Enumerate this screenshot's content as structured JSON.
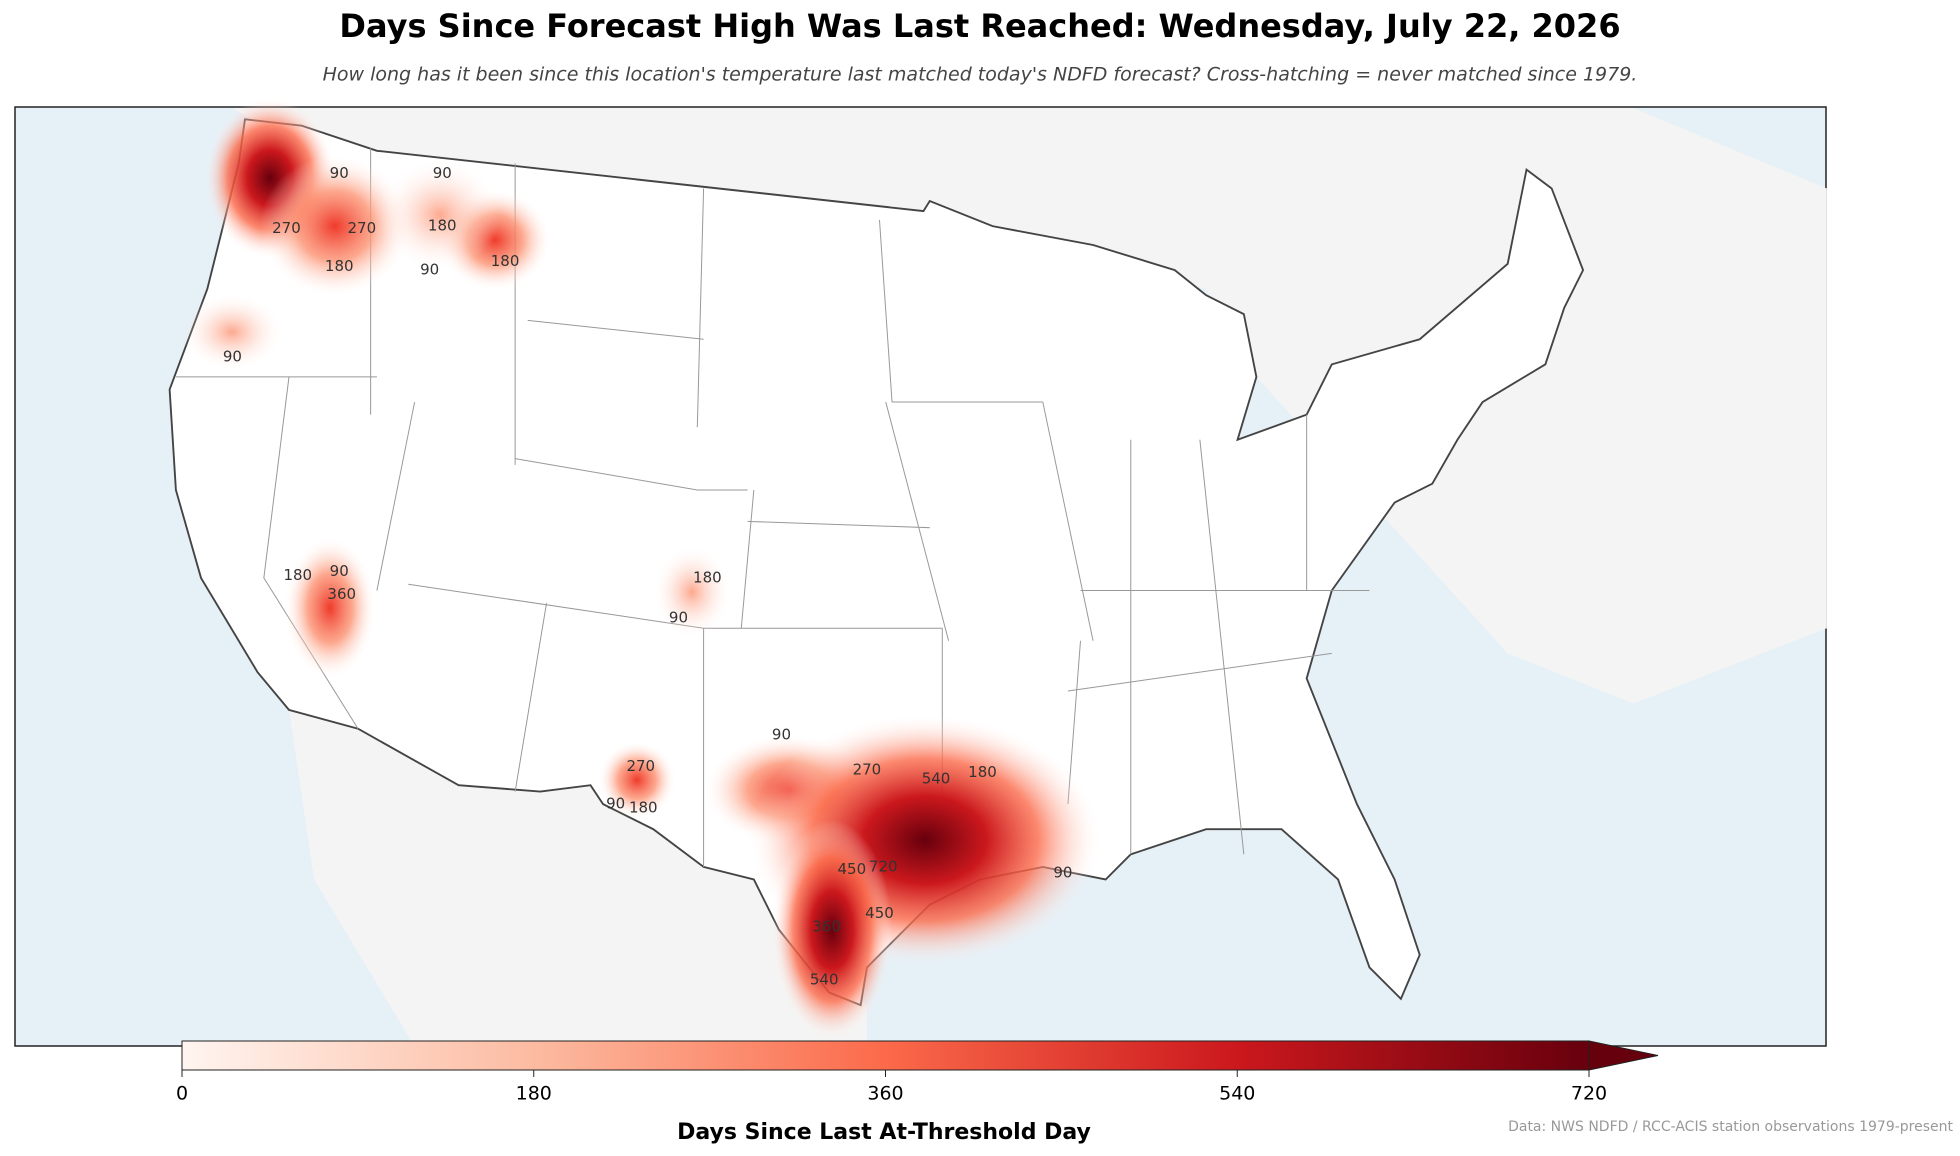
{
  "title": "Days Since Forecast High Was Last Reached: Wednesday, July 22, 2026",
  "subtitle": "How long has it been since this location's temperature last matched today's NDFD forecast? Cross-hatching = never matched since 1979.",
  "colorbar": {
    "label": "Days Since Last At-Threshold Day",
    "lim": [
      0,
      720
    ],
    "ticks": [
      0,
      180,
      360,
      540,
      720
    ],
    "colors": [
      "#fff5f0",
      "#fcbba1",
      "#fb6a4a",
      "#cb181d",
      "#67000d"
    ],
    "extend": "max"
  },
  "contour_labels": [
    90,
    90,
    270,
    180,
    180,
    180,
    90,
    90,
    270,
    90,
    180,
    360,
    180,
    90,
    270,
    180,
    90,
    90,
    270,
    540,
    180,
    450,
    720,
    450,
    360,
    540,
    90
  ],
  "source": "Data: NWS NDFD / RCC-ACIS station observations 1979-present"
}
